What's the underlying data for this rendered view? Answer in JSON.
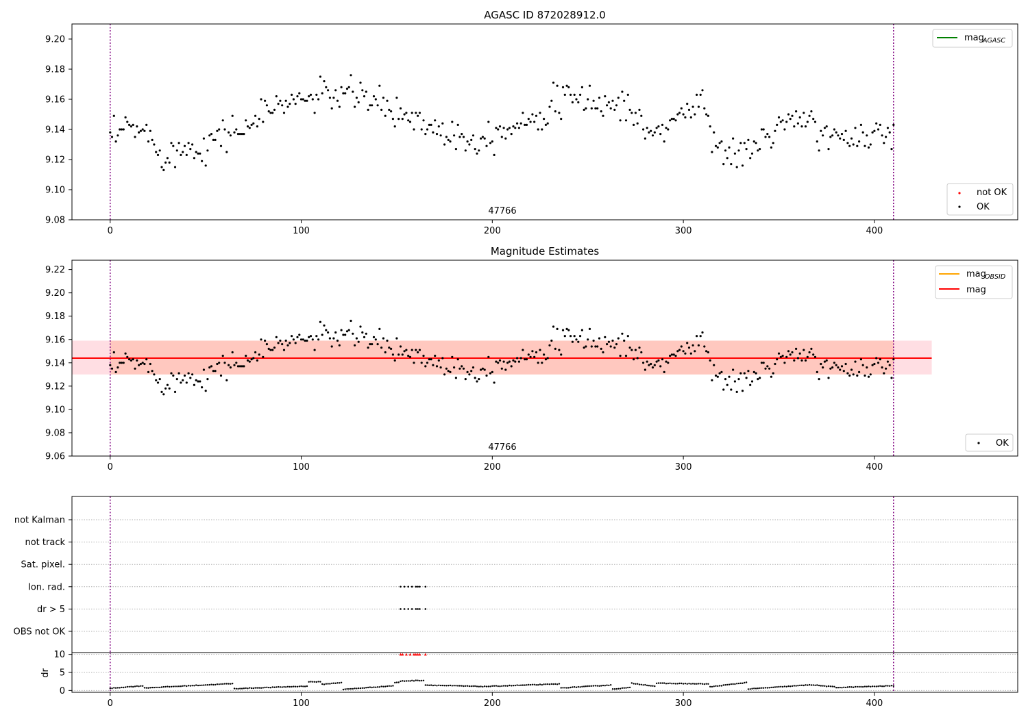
{
  "chart_data": [
    {
      "type": "scatter",
      "title": "AGASC ID 872028912.0",
      "obsid_label": "47766",
      "xlim": [
        -20,
        475
      ],
      "ylim": [
        9.08,
        9.21
      ],
      "xticks": [
        0,
        100,
        200,
        300,
        400
      ],
      "yticks": [
        9.08,
        9.1,
        9.12,
        9.14,
        9.16,
        9.18,
        9.2
      ],
      "vlines_x": [
        0,
        410
      ],
      "series": [
        {
          "name": "not OK",
          "color": "#ff0000",
          "x": [],
          "y": []
        },
        {
          "name": "OK",
          "color": "#000000",
          "x": [],
          "y": []
        }
      ],
      "legend_lines": [
        {
          "name": "mag",
          "subscript": "AGASC",
          "color": "#008000"
        }
      ],
      "value_model": {
        "n_points": 411,
        "knots_x": [
          0,
          10,
          20,
          30,
          40,
          50,
          60,
          70,
          80,
          90,
          100,
          110,
          120,
          130,
          140,
          150,
          160,
          170,
          180,
          190,
          200,
          210,
          220,
          230,
          240,
          250,
          260,
          270,
          280,
          290,
          300,
          310,
          320,
          330,
          340,
          350,
          360,
          370,
          380,
          390,
          400,
          410
        ],
        "knots_y": [
          9.132,
          9.142,
          9.136,
          9.122,
          9.128,
          9.13,
          9.138,
          9.14,
          9.15,
          9.158,
          9.16,
          9.162,
          9.164,
          9.162,
          9.158,
          9.15,
          9.148,
          9.14,
          9.138,
          9.132,
          9.138,
          9.142,
          9.148,
          9.155,
          9.16,
          9.16,
          9.156,
          9.158,
          9.138,
          9.14,
          9.152,
          9.158,
          9.125,
          9.122,
          9.132,
          9.142,
          9.145,
          9.142,
          9.132,
          9.134,
          9.14,
          9.135
        ],
        "noise": 0.009
      }
    },
    {
      "type": "scatter",
      "title": "Magnitude Estimates",
      "obsid_label": "47766",
      "xlim": [
        -20,
        475
      ],
      "ylim": [
        9.06,
        9.228
      ],
      "xticks": [
        0,
        100,
        200,
        300,
        400
      ],
      "yticks": [
        9.06,
        9.08,
        9.1,
        9.12,
        9.14,
        9.16,
        9.18,
        9.2,
        9.22
      ],
      "vlines_x": [
        0,
        410
      ],
      "mag": 9.144,
      "band_pink": {
        "x": [
          -20,
          430
        ],
        "y": [
          9.13,
          9.159
        ]
      },
      "band_orange": {
        "x": [
          0,
          410
        ],
        "y": [
          9.13,
          9.159
        ]
      },
      "series": [
        {
          "name": "OK",
          "color": "#000000",
          "x": [],
          "y": []
        }
      ],
      "legend_lines": [
        {
          "name": "mag",
          "subscript": "OBSID",
          "color": "#ffa500"
        },
        {
          "name": "mag",
          "subscript": "",
          "color": "#ff0000"
        }
      ]
    },
    {
      "type": "scatter",
      "xlim": [
        -20,
        475
      ],
      "xticks": [
        0,
        100,
        200,
        300,
        400
      ],
      "vlines_x": [
        0,
        410
      ],
      "flag_labels": [
        "not Kalman",
        "not track",
        "Sat. pixel.",
        "Ion. rad.",
        "dr > 5",
        "OBS not OK"
      ],
      "flag_points": {
        "Ion. rad.": [
          152,
          154,
          156,
          158,
          160,
          161,
          162,
          165
        ],
        "dr > 5": [
          152,
          154,
          156,
          158,
          160,
          161,
          162,
          165
        ]
      },
      "dr": {
        "ylabel": "dr",
        "ylim": [
          -0.5,
          10.5
        ],
        "yticks": [
          0,
          5,
          10
        ],
        "clipped_x": [
          152,
          153,
          155,
          157,
          159,
          160,
          161,
          162,
          165
        ],
        "clipped_color": "#ff0000",
        "segments": [
          {
            "x": [
              0,
              17
            ],
            "y": [
              0.6,
              1.3
            ]
          },
          {
            "x": [
              18,
              64
            ],
            "y": [
              0.7,
              1.9
            ]
          },
          {
            "x": [
              65,
              103
            ],
            "y": [
              0.5,
              1.2
            ]
          },
          {
            "x": [
              104,
              110
            ],
            "y": [
              2.4,
              2.4
            ]
          },
          {
            "x": [
              111,
              121
            ],
            "y": [
              1.7,
              2.2
            ]
          },
          {
            "x": [
              122,
              148
            ],
            "y": [
              0.3,
              1.3
            ]
          },
          {
            "x": [
              149,
              151
            ],
            "y": [
              2.2,
              2.2
            ]
          },
          {
            "x": [
              152,
              164
            ],
            "y": [
              2.6,
              2.8
            ]
          },
          {
            "x": [
              165,
              195
            ],
            "y": [
              1.5,
              1.1
            ]
          },
          {
            "x": [
              196,
              235
            ],
            "y": [
              1.1,
              1.8
            ]
          },
          {
            "x": [
              236,
              262
            ],
            "y": [
              0.7,
              1.5
            ]
          },
          {
            "x": [
              263,
              272
            ],
            "y": [
              0.4,
              0.8
            ]
          },
          {
            "x": [
              273,
              285
            ],
            "y": [
              2.0,
              1.2
            ]
          },
          {
            "x": [
              286,
              313
            ],
            "y": [
              2.0,
              1.8
            ]
          },
          {
            "x": [
              314,
              333
            ],
            "y": [
              1.0,
              2.2
            ]
          },
          {
            "x": [
              334,
              365
            ],
            "y": [
              0.4,
              1.5
            ]
          },
          {
            "x": [
              366,
              379
            ],
            "y": [
              1.6,
              1.0
            ]
          },
          {
            "x": [
              380,
              410
            ],
            "y": [
              0.8,
              1.3
            ]
          }
        ]
      }
    }
  ]
}
